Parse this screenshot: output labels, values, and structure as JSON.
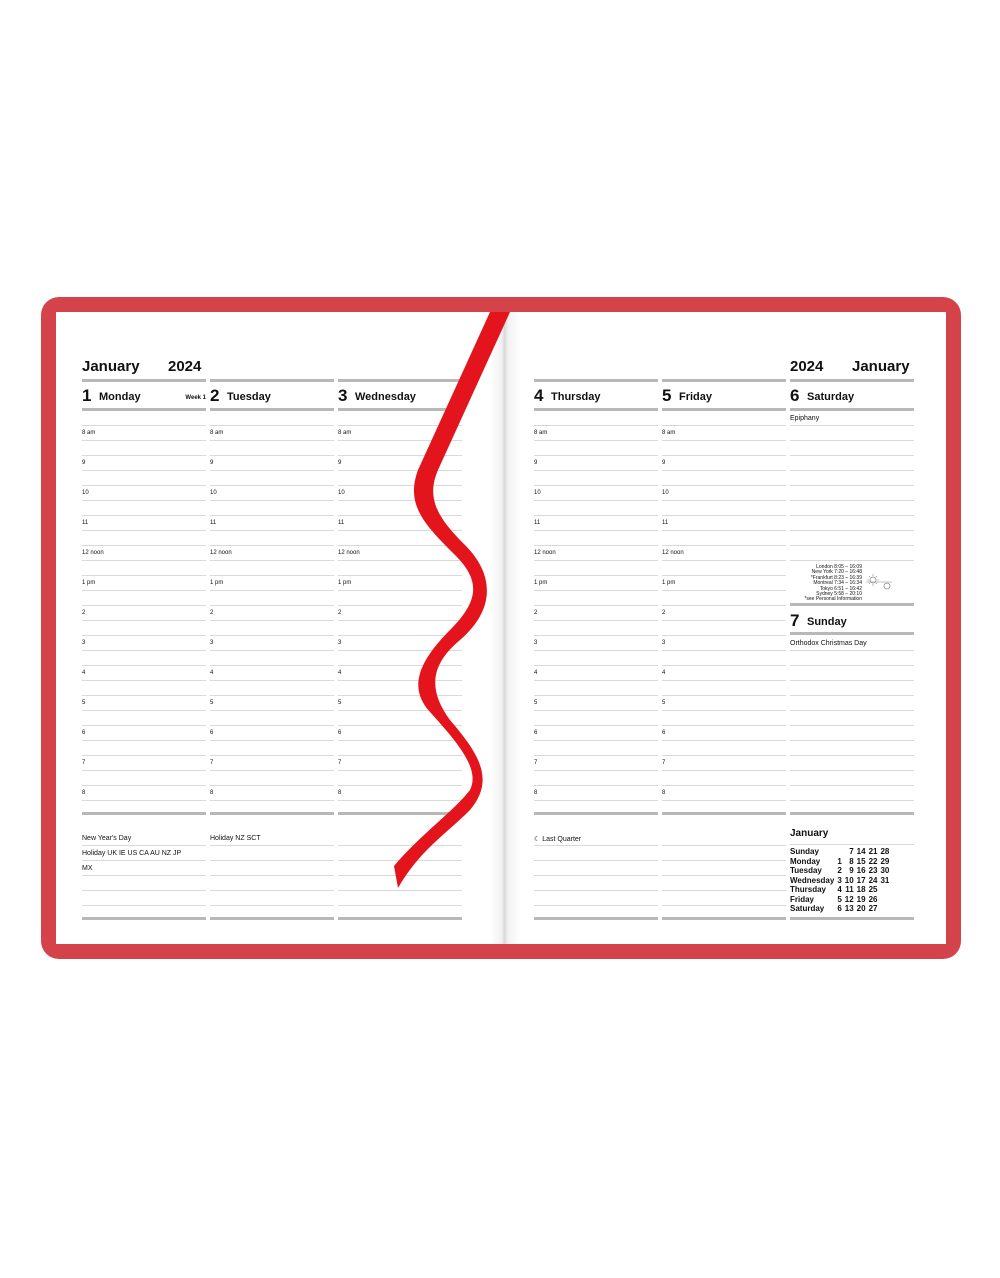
{
  "colors": {
    "cover": "#d4434a",
    "ribbon": "#e3141c",
    "rule": "#b8b8b8"
  },
  "left_header": {
    "month": "January",
    "year": "2024"
  },
  "right_header": {
    "month": "January",
    "year": "2024"
  },
  "hours": [
    "8 am",
    "9",
    "10",
    "11",
    "12 noon",
    "1 pm",
    "2",
    "3",
    "4",
    "5",
    "6",
    "7",
    "8"
  ],
  "days": [
    {
      "num": "1",
      "name": "Monday",
      "week": "Week 1",
      "notes": [
        "New Year's Day",
        "Holiday UK  IE  US  CA  AU  NZ  JP",
        "MX"
      ]
    },
    {
      "num": "2",
      "name": "Tuesday",
      "notes": [
        "Holiday NZ  SCT"
      ]
    },
    {
      "num": "3",
      "name": "Wednesday",
      "notes": []
    },
    {
      "num": "4",
      "name": "Thursday",
      "notes": [
        "☾ Last Quarter"
      ]
    },
    {
      "num": "5",
      "name": "Friday",
      "notes": []
    }
  ],
  "saturday": {
    "num": "6",
    "name": "Saturday",
    "note": "Epiphany"
  },
  "sunday": {
    "num": "7",
    "name": "Sunday",
    "note": "Orthodox Christmas Day"
  },
  "sun_times": [
    "London 8:05 – 16:09",
    "New York 7:20 – 16:48",
    "*Frankfurt 8:23 – 16:39",
    "Montreal 7:34 – 16:34",
    "Tokyo 6:51 – 16:42",
    "Sydney 5:58 – 20:10",
    "*see Personal Information"
  ],
  "mini_calendar": {
    "title": "January",
    "rows": [
      [
        "Sunday",
        "",
        "7",
        "14",
        "21",
        "28"
      ],
      [
        "Monday",
        "1",
        "8",
        "15",
        "22",
        "29"
      ],
      [
        "Tuesday",
        "2",
        "9",
        "16",
        "23",
        "30"
      ],
      [
        "Wednesday",
        "3",
        "10",
        "17",
        "24",
        "31"
      ],
      [
        "Thursday",
        "4",
        "11",
        "18",
        "25",
        ""
      ],
      [
        "Friday",
        "5",
        "12",
        "19",
        "26",
        ""
      ],
      [
        "Saturday",
        "6",
        "13",
        "20",
        "27",
        ""
      ]
    ]
  }
}
